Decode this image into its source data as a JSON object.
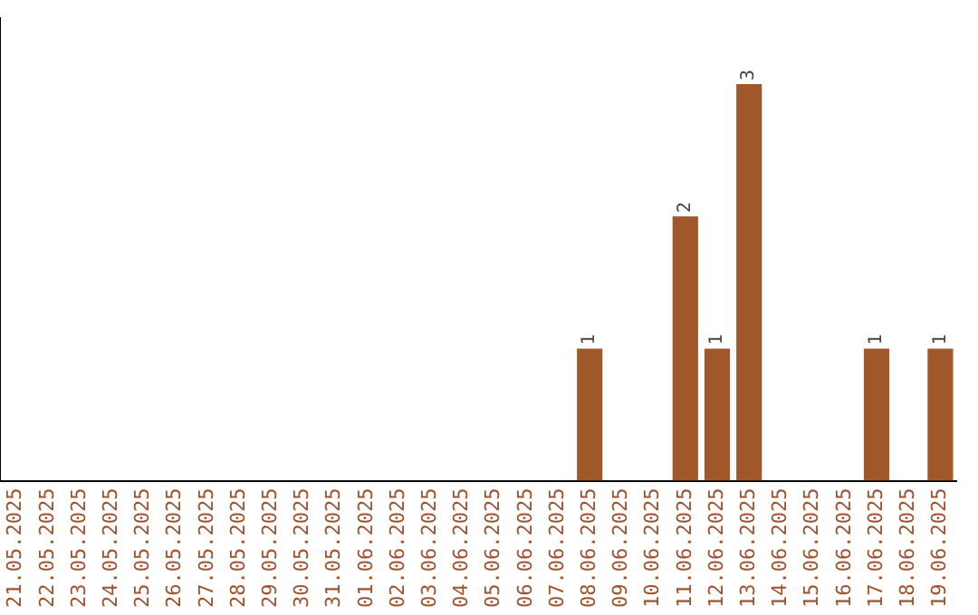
{
  "chart_data": {
    "type": "bar",
    "categories": [
      "21.05.2025",
      "22.05.2025",
      "23.05.2025",
      "24.05.2025",
      "25.05.2025",
      "26.05.2025",
      "27.05.2025",
      "28.05.2025",
      "29.05.2025",
      "30.05.2025",
      "31.05.2025",
      "01.06.2025",
      "02.06.2025",
      "03.06.2025",
      "04.06.2025",
      "05.06.2025",
      "06.06.2025",
      "07.06.2025",
      "08.06.2025",
      "09.06.2025",
      "10.06.2025",
      "11.06.2025",
      "12.06.2025",
      "13.06.2025",
      "14.06.2025",
      "15.06.2025",
      "16.06.2025",
      "17.06.2025",
      "18.06.2025",
      "19.06.2025"
    ],
    "values": [
      null,
      null,
      null,
      null,
      null,
      null,
      null,
      null,
      null,
      null,
      null,
      null,
      null,
      null,
      null,
      null,
      null,
      null,
      1,
      null,
      null,
      2,
      1,
      3,
      null,
      null,
      null,
      1,
      null,
      1
    ],
    "value_labels": [
      null,
      null,
      null,
      null,
      null,
      null,
      null,
      null,
      null,
      null,
      null,
      null,
      null,
      null,
      null,
      null,
      null,
      null,
      "1",
      null,
      null,
      "2",
      "1",
      "3",
      null,
      null,
      null,
      "1",
      null,
      "1"
    ],
    "color": "#a0572a"
  }
}
